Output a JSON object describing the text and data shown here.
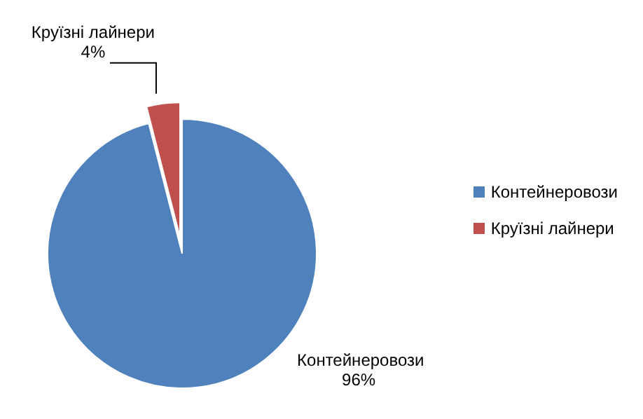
{
  "chart_data": {
    "type": "pie",
    "categories": [
      "Контейнеровози",
      "Круїзні лайнери"
    ],
    "values": [
      96,
      4
    ],
    "value_labels": [
      "96%",
      "4%"
    ],
    "colors": [
      "#4f81bd",
      "#c0504d"
    ],
    "legend": "right"
  }
}
